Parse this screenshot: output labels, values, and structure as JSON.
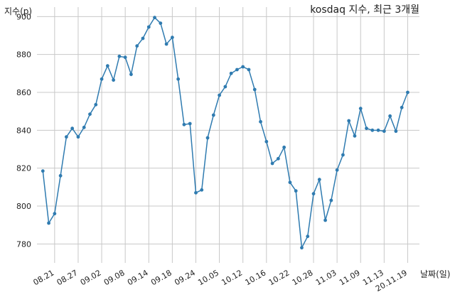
{
  "chart_data": {
    "type": "line",
    "title": "kosdaq 지수, 최근 3개월",
    "xlabel": "날짜(일)",
    "ylabel": "지수(p)",
    "ylim": [
      770,
      905
    ],
    "yticks": [
      780,
      800,
      820,
      840,
      860,
      880,
      900
    ],
    "grid": true,
    "line_color": "#2f7bb0",
    "x_tick_labels": [
      "08.21",
      "08.27",
      "09.02",
      "09.08",
      "09.14",
      "09.18",
      "09.24",
      "10.05",
      "10.12",
      "10.16",
      "10.22",
      "10.28",
      "11.03",
      "11.09",
      "11.13",
      "20.11.19"
    ],
    "x_tick_positions": [
      2,
      6,
      10,
      14,
      18,
      22,
      26,
      30,
      34,
      38,
      42,
      46,
      50,
      54,
      58,
      62
    ],
    "x_range": [
      -1,
      64
    ],
    "series": [
      {
        "values": [
          818.5,
          791,
          796,
          816,
          836.5,
          841,
          836.5,
          841.5,
          848.5,
          853.5,
          867,
          874,
          866.5,
          879,
          878.5,
          869.5,
          884.5,
          888.5,
          894.5,
          899.5,
          896.5,
          885.5,
          889,
          867,
          843,
          843.5,
          807,
          808.5,
          836,
          848,
          858.5,
          863,
          870,
          872,
          873.5,
          872,
          861.5,
          844.5,
          834,
          822.5,
          825,
          831,
          812.5,
          808,
          778,
          784,
          806.5,
          814,
          792.5,
          803,
          819,
          827,
          845,
          837,
          851.5,
          841,
          840,
          840,
          839.5,
          847.5,
          839.5,
          852,
          860
        ]
      }
    ]
  }
}
